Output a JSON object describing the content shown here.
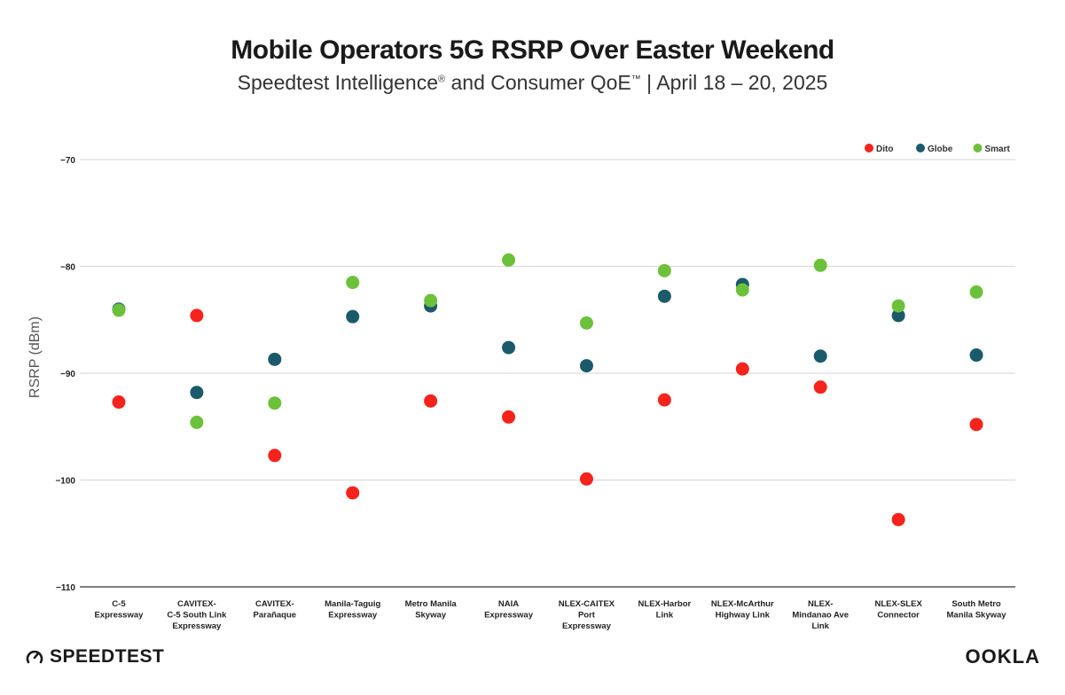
{
  "title": "Mobile Operators 5G RSRP Over Easter Weekend",
  "subtitle_main": "Speedtest Intelligence",
  "subtitle_reg": "®",
  "subtitle_mid": " and Consumer QoE",
  "subtitle_tm": "™",
  "subtitle_tail": " | April 18 – 20, 2025",
  "brand_left": "SPEEDTEST",
  "brand_right": "OOKLA",
  "colors": {
    "Dito": "#f5231c",
    "Globe": "#1a5a6b",
    "Smart": "#6cc13b"
  },
  "chart_data": {
    "type": "scatter",
    "title": "Mobile Operators 5G RSRP Over Easter Weekend",
    "ylabel": "RSRP (dBm)",
    "xlabel": "",
    "ylim": [
      -110,
      -70
    ],
    "yticks": [
      "−70",
      "−80",
      "−90",
      "−100",
      "−110"
    ],
    "ytick_values": [
      -70,
      -80,
      -90,
      -100,
      -110
    ],
    "grid": true,
    "legend_position": "top-right",
    "categories": [
      [
        "C-5",
        "Expressway"
      ],
      [
        "CAVITEX-",
        "C-5 South Link",
        "Expressway"
      ],
      [
        "CAVITEX-",
        "Parañaque"
      ],
      [
        "Manila-Taguig",
        "Expressway"
      ],
      [
        "Metro Manila",
        "Skyway"
      ],
      [
        "NAIA",
        "Expressway"
      ],
      [
        "NLEX-CAITEX",
        "Port",
        "Expressway"
      ],
      [
        "NLEX-Harbor",
        "Link"
      ],
      [
        "NLEX-McArthur",
        "Highway Link"
      ],
      [
        "NLEX-",
        "Mindanao Ave",
        "Link"
      ],
      [
        "NLEX-SLEX",
        "Connector"
      ],
      [
        "South Metro",
        "Manila Skyway"
      ]
    ],
    "series": [
      {
        "name": "Dito",
        "color": "#f5231c",
        "values": [
          -92.7,
          -84.6,
          -97.7,
          -101.2,
          -92.6,
          -94.1,
          -99.9,
          -92.5,
          -89.6,
          -91.3,
          -103.7,
          -94.8
        ]
      },
      {
        "name": "Globe",
        "color": "#1a5a6b",
        "values": [
          -84.0,
          -91.8,
          -88.7,
          -84.7,
          -83.7,
          -87.6,
          -89.3,
          -82.8,
          -81.7,
          -88.4,
          -84.6,
          -88.3
        ]
      },
      {
        "name": "Smart",
        "color": "#6cc13b",
        "values": [
          -84.1,
          -94.6,
          -92.8,
          -81.5,
          -83.2,
          -79.4,
          -85.3,
          -80.4,
          -82.2,
          -79.9,
          -83.7,
          -82.4
        ]
      }
    ]
  }
}
